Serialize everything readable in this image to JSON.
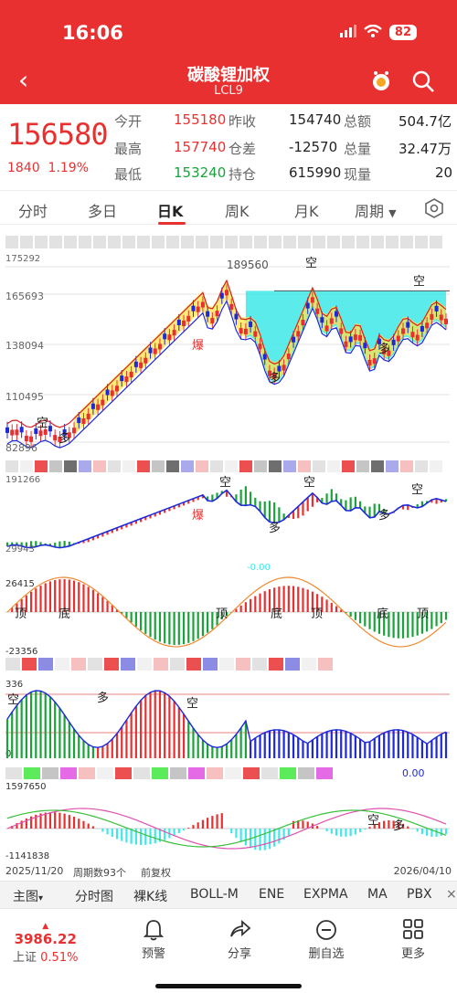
{
  "status": {
    "time": "16:06",
    "battery": "82"
  },
  "header": {
    "title": "碳酸锂加权",
    "subtitle": "LCL9"
  },
  "quote": {
    "price": "156580",
    "change": "1840",
    "change_pct": "1.19%",
    "open_label": "今开",
    "open": "155180",
    "high_label": "最高",
    "high": "157740",
    "low_label": "最低",
    "low": "153240",
    "prev_label": "昨收",
    "prev": "154740",
    "diff_label": "仓差",
    "diff": "-12570",
    "oi_label": "持仓",
    "oi": "615990",
    "amount_label": "总额",
    "amount": "504.7亿",
    "volume_label": "总量",
    "volume": "32.47万",
    "current_label": "现量",
    "current": "20"
  },
  "tabs": [
    "分时",
    "多日",
    "日K",
    "周K",
    "月K",
    "周期"
  ],
  "chart": {
    "main": {
      "y1": "175292",
      "y2": "165693",
      "y3": "138094",
      "y4": "110495",
      "y5": "82896",
      "peak": "189560",
      "marks": [
        "空",
        "多",
        "爆",
        "空",
        "多",
        "空",
        "多"
      ]
    },
    "p2": {
      "top": "191266",
      "bottom": "29943",
      "marks": [
        "空",
        "空",
        "空",
        "爆",
        "多",
        "多"
      ]
    },
    "p3": {
      "top": "26415",
      "bottom": "-23356",
      "partial": "-0.00",
      "marks": [
        "顶",
        "底",
        "顶",
        "底",
        "顶",
        "底",
        "顶"
      ]
    },
    "p4": {
      "top": "336",
      "bottom": "0",
      "marks": [
        "空",
        "多",
        "空"
      ]
    },
    "p5": {
      "top": "1597650",
      "bottom": "-1141838",
      "partial": "0.00",
      "marks": [
        "空",
        "多"
      ]
    }
  },
  "dates": {
    "start": "2025/11/20",
    "count": "周期数93个",
    "fq": "前复权",
    "end": "2026/04/10"
  },
  "indicator_tabs": [
    "主图",
    "分时图",
    "裸K线",
    "BOLL-M",
    "ENE",
    "EXPMA",
    "MA",
    "PBX"
  ],
  "bottom": {
    "index_value": "3986.22",
    "index_label": "上证",
    "index_pct": "0.51%",
    "buttons": [
      "预警",
      "分享",
      "删自选",
      "更多"
    ]
  },
  "colors": {
    "red": "#e93030",
    "green": "#19a33a",
    "cyan": "#3ee8e8",
    "yellow": "#ffe44a",
    "blue": "#1e2ad8"
  }
}
